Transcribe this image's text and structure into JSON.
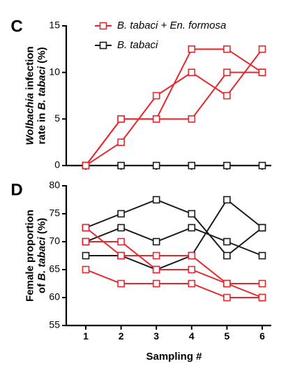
{
  "colors": {
    "treatment": "#e8262d",
    "control": "#1a1a1a"
  },
  "chart_data": [
    {
      "panel": "C",
      "type": "line",
      "ylabel_lines": [
        [
          {
            "t": "Wolbachia",
            "italic": true
          },
          {
            "t": " infection",
            "italic": false
          }
        ],
        [
          {
            "t": "rate in ",
            "italic": false
          },
          {
            "t": "B. tabaci",
            "italic": true
          },
          {
            "t": " (%)",
            "italic": false
          }
        ]
      ],
      "x": [
        1,
        2,
        3,
        4,
        5,
        6
      ],
      "ylim": [
        0,
        15
      ],
      "yticks": [
        0,
        5,
        10,
        15
      ],
      "legend": {
        "placement": "top",
        "entries": [
          {
            "label": "B. tabaci + En. formosa",
            "group": "treatment"
          },
          {
            "label": "B. tabaci",
            "group": "control"
          }
        ]
      },
      "series": [
        {
          "group": "treatment",
          "values": [
            0,
            5,
            5,
            12.5,
            12.5,
            10
          ]
        },
        {
          "group": "treatment",
          "values": [
            0,
            2.5,
            7.5,
            10,
            7.5,
            12.5
          ]
        },
        {
          "group": "treatment",
          "values": [
            0,
            5,
            5,
            5,
            10,
            10
          ]
        },
        {
          "group": "control",
          "values": [
            0,
            0,
            0,
            0,
            0,
            0
          ]
        }
      ]
    },
    {
      "panel": "D",
      "type": "line",
      "ylabel_lines": [
        [
          {
            "t": "Female proportion",
            "italic": false
          }
        ],
        [
          {
            "t": "of ",
            "italic": false
          },
          {
            "t": "B. tabaci",
            "italic": true
          },
          {
            "t": " (%)",
            "italic": false
          }
        ]
      ],
      "xlabel": "Sampling #",
      "x": [
        1,
        2,
        3,
        4,
        5,
        6
      ],
      "xticks": [
        "1",
        "2",
        "3",
        "4",
        "5",
        "6"
      ],
      "ylim": [
        55,
        80
      ],
      "yticks": [
        55,
        60,
        65,
        70,
        75,
        80
      ],
      "series": [
        {
          "group": "control",
          "values": [
            72.5,
            75,
            77.5,
            75,
            67.5,
            72.5
          ]
        },
        {
          "group": "control",
          "values": [
            70,
            72.5,
            70,
            72.5,
            70,
            67.5
          ]
        },
        {
          "group": "control",
          "values": [
            67.5,
            67.5,
            65,
            67.5,
            77.5,
            72.5
          ]
        },
        {
          "group": "treatment",
          "values": [
            72.5,
            67.5,
            67.5,
            67.5,
            62.5,
            62.5
          ]
        },
        {
          "group": "treatment",
          "values": [
            70,
            70,
            65,
            65,
            62.5,
            60
          ]
        },
        {
          "group": "treatment",
          "values": [
            65,
            62.5,
            62.5,
            62.5,
            60,
            60
          ]
        }
      ]
    }
  ]
}
